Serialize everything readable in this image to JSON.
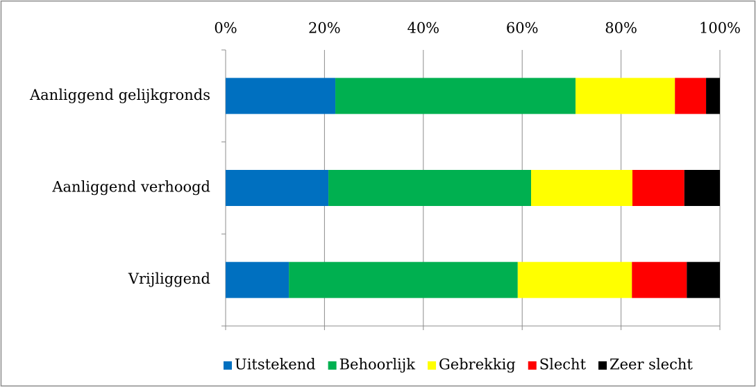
{
  "chart_data": {
    "type": "stacked_bar_horizontal",
    "categories": [
      "Aanliggend gelijkgronds",
      "Aanliggend verhoogd",
      "Vrijliggend"
    ],
    "series": [
      {
        "name": "Uitstekend",
        "color": "#0070c0",
        "values": [
          22.2,
          20.8,
          12.8
        ]
      },
      {
        "name": "Behoorlijk",
        "color": "#00b050",
        "values": [
          48.6,
          41.0,
          46.3
        ]
      },
      {
        "name": "Gebrekkig",
        "color": "#ffff00",
        "values": [
          20.1,
          20.5,
          23.1
        ]
      },
      {
        "name": "Slecht",
        "color": "#ff0000",
        "values": [
          6.3,
          10.5,
          11.1
        ]
      },
      {
        "name": "Zeer slecht",
        "color": "#000000",
        "values": [
          2.8,
          7.2,
          6.7
        ]
      }
    ],
    "xlim": [
      0,
      100
    ],
    "xticks": [
      {
        "value": 0,
        "label": "0%"
      },
      {
        "value": 20,
        "label": "20%"
      },
      {
        "value": 40,
        "label": "40%"
      },
      {
        "value": 60,
        "label": "60%"
      },
      {
        "value": 80,
        "label": "80%"
      },
      {
        "value": 100,
        "label": "100%"
      }
    ],
    "grid": true,
    "legend": "bottom"
  }
}
